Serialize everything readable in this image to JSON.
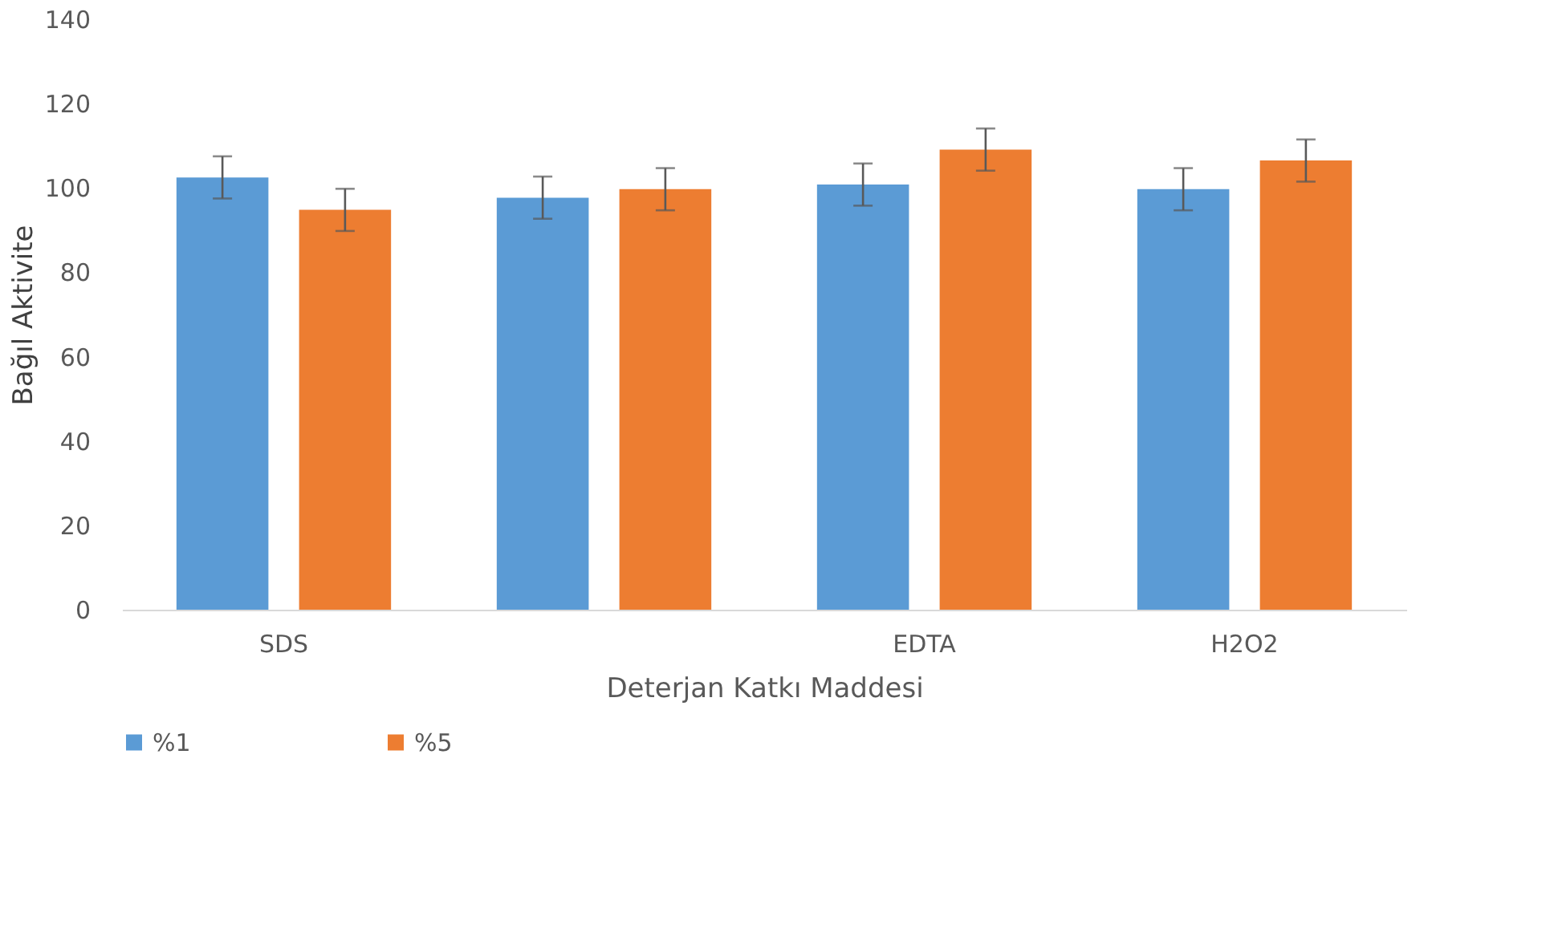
{
  "chart_data": {
    "type": "bar",
    "xlabel": "Deterjan Katkı Maddesi",
    "ylabel": "Bağıl Aktivite",
    "categories": [
      "SDS",
      null,
      "EDTA",
      "H2O2"
    ],
    "series": [
      {
        "name": "%1",
        "color": "#5b9bd5",
        "values": [
          102.5,
          97.7,
          100.8,
          99.7
        ],
        "errors": [
          5,
          5,
          5,
          5
        ]
      },
      {
        "name": "%5",
        "color": "#ed7d31",
        "values": [
          94.8,
          99.7,
          109.1,
          106.5
        ],
        "errors": [
          5,
          5,
          5,
          5
        ]
      }
    ],
    "ylim": [
      0,
      140
    ],
    "yticks": [
      0,
      20,
      40,
      60,
      80,
      100,
      120,
      140
    ],
    "grid": false,
    "legend": "bottom"
  }
}
